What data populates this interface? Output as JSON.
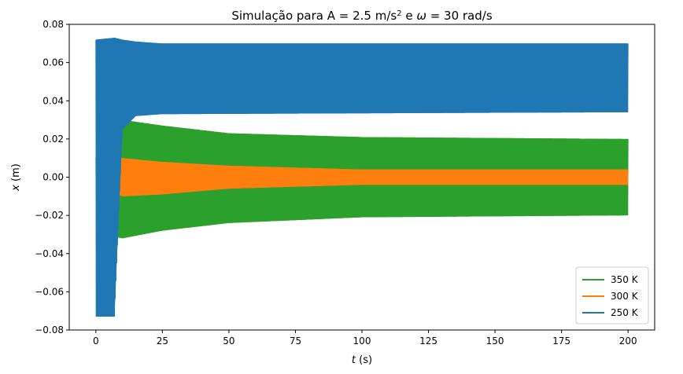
{
  "chart_data": {
    "type": "line",
    "title": {
      "prefix": "Simulação para A = 2.5 m/s",
      "sup": "2",
      "middle": " e ",
      "omega": "ω",
      "suffix": " = 30 rad/s"
    },
    "xlabel": {
      "var": "t",
      "unit": " (s)"
    },
    "ylabel": {
      "var": "x",
      "unit": " (m)"
    },
    "xlim": [
      -10,
      210
    ],
    "ylim": [
      -0.08,
      0.08
    ],
    "xticks": [
      0,
      25,
      50,
      75,
      100,
      125,
      150,
      175,
      200
    ],
    "yticks": [
      -0.08,
      -0.06,
      -0.04,
      -0.02,
      0.0,
      0.02,
      0.04,
      0.06,
      0.08
    ],
    "ytick_labels": [
      "−0.08",
      "−0.06",
      "−0.04",
      "−0.02",
      "0.00",
      "0.02",
      "0.04",
      "0.06",
      "0.08"
    ],
    "xtick_labels": [
      "0",
      "25",
      "50",
      "75",
      "100",
      "125",
      "150",
      "175",
      "200"
    ],
    "legend_position": "bottom-right",
    "grid": false,
    "series": [
      {
        "name": "350 K",
        "color": "#2ca02c",
        "description_points": [
          {
            "t": 0,
            "upper": 0.01,
            "lower": -0.01
          },
          {
            "t": 3,
            "upper": 0.03,
            "lower": -0.03
          },
          {
            "t": 10,
            "upper": 0.03,
            "lower": -0.032
          },
          {
            "t": 25,
            "upper": 0.027,
            "lower": -0.028
          },
          {
            "t": 50,
            "upper": 0.023,
            "lower": -0.024
          },
          {
            "t": 100,
            "upper": 0.021,
            "lower": -0.021
          },
          {
            "t": 200,
            "upper": 0.02,
            "lower": -0.02
          }
        ]
      },
      {
        "name": "300 K",
        "color": "#ff7f0e",
        "description_points": [
          {
            "t": 0,
            "upper": 0.004,
            "lower": -0.004
          },
          {
            "t": 10,
            "upper": 0.01,
            "lower": -0.01
          },
          {
            "t": 25,
            "upper": 0.008,
            "lower": -0.009
          },
          {
            "t": 50,
            "upper": 0.006,
            "lower": -0.006
          },
          {
            "t": 100,
            "upper": 0.004,
            "lower": -0.004
          },
          {
            "t": 200,
            "upper": 0.004,
            "lower": -0.004
          }
        ]
      },
      {
        "name": "250 K",
        "color": "#1f77b4",
        "description_points": [
          {
            "t": 0,
            "upper": 0.072,
            "lower": -0.073
          },
          {
            "t": 7,
            "upper": 0.073,
            "lower": -0.073
          },
          {
            "t": 10,
            "upper": 0.072,
            "lower": 0.025
          },
          {
            "t": 15,
            "upper": 0.071,
            "lower": 0.032
          },
          {
            "t": 25,
            "upper": 0.07,
            "lower": 0.033
          },
          {
            "t": 200,
            "upper": 0.07,
            "lower": 0.034
          }
        ]
      }
    ]
  }
}
